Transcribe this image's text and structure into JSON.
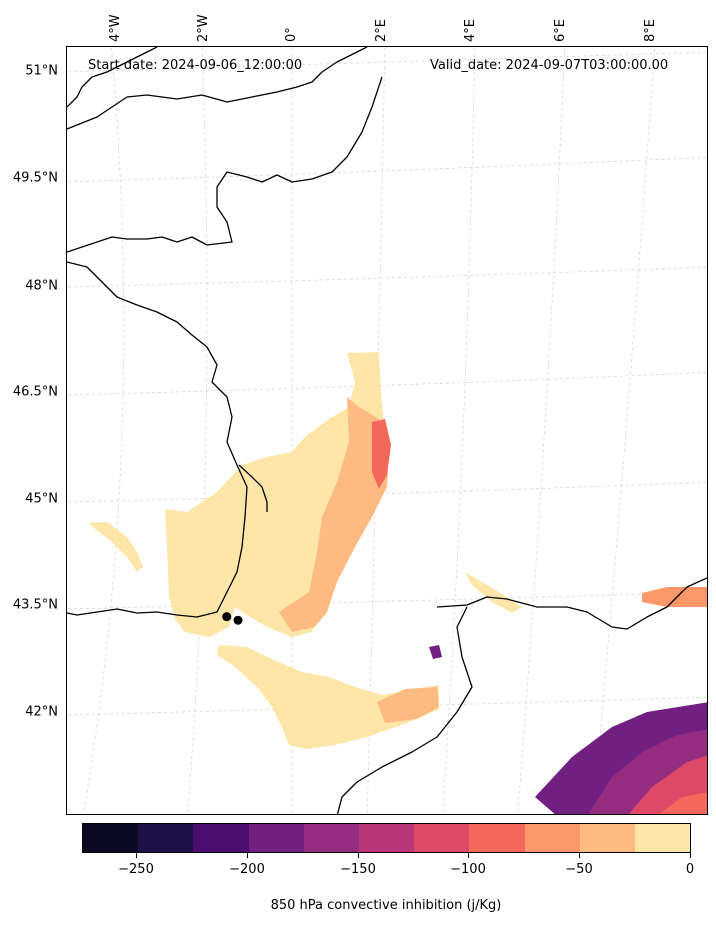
{
  "map": {
    "start_date": "Start date: 2024-09-06_12:00:00",
    "valid_date": "Valid_date: 2024-09-07T03:00:00.00",
    "lat_labels": [
      "51°N",
      "49.5°N",
      "48°N",
      "46.5°N",
      "45°N",
      "43.5°N",
      "42°N"
    ],
    "lon_labels": [
      "4°W",
      "2°W",
      "0°",
      "2°E",
      "4°E",
      "6°E",
      "8°E"
    ],
    "points": [
      {
        "lat": 43.35,
        "lon": -1.45
      },
      {
        "lat": 43.3,
        "lon": -1.2
      }
    ]
  },
  "colorbar": {
    "title": "850 hPa convective inhibition (j/Kg)",
    "tick_labels": [
      "−250",
      "−200",
      "−150",
      "−100",
      "−50",
      "0"
    ],
    "range": [
      -275,
      0
    ],
    "colors": [
      "#0a0822",
      "#1e1146",
      "#4a0f6e",
      "#711f81",
      "#942c80",
      "#b93778",
      "#de4968",
      "#f4685c",
      "#fd9668",
      "#febb81",
      "#fde6a8"
    ]
  }
}
